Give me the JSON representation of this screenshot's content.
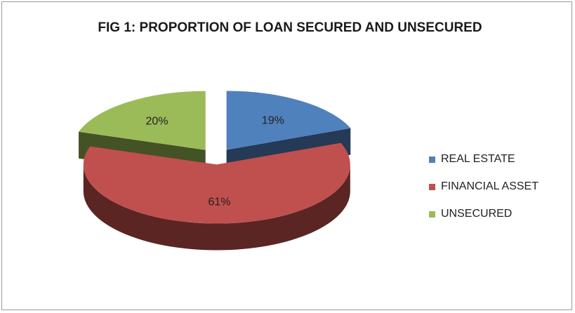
{
  "chart_data": {
    "type": "pie",
    "title": "FIG 1: PROPORTION OF LOAN SECURED AND UNSECURED",
    "labels": [
      "REAL ESTATE",
      "FINANCIAL ASSET",
      "UNSECURED"
    ],
    "values": [
      19,
      61,
      20
    ],
    "value_labels": [
      "19%",
      "61%",
      "20%"
    ],
    "colors": [
      "#4f81bd",
      "#c0504d",
      "#9bbb59"
    ],
    "side_colors": [
      "#243a57",
      "#5a2523",
      "#435326"
    ],
    "exploded": true,
    "three_d": true,
    "legend_position": "right"
  }
}
